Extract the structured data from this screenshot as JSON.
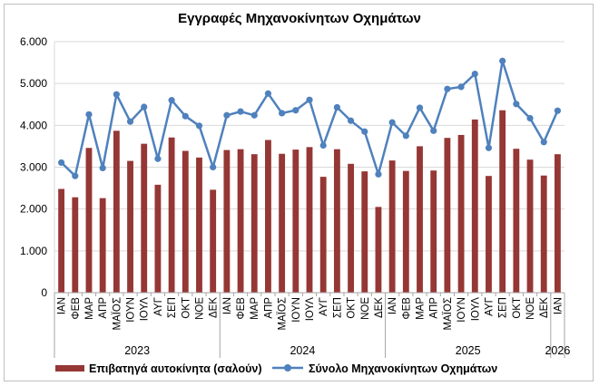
{
  "chart_data": {
    "type": "bar+line",
    "title": "Εγγραφές Μηχανοκίνητων Οχημάτων",
    "ylim": [
      0,
      6000
    ],
    "yticks": [
      "0",
      "1.000",
      "2.000",
      "3.000",
      "4.000",
      "5.000",
      "6.000"
    ],
    "ytick_values": [
      0,
      1000,
      2000,
      3000,
      4000,
      5000,
      6000
    ],
    "grid": true,
    "legend_position": "bottom",
    "categories": [
      "ΙΑΝ",
      "ΦΕΒ",
      "ΜΑΡ",
      "ΑΠΡ",
      "ΜΑΪΟΣ",
      "ΙΟΥΝ",
      "ΙΟΥΛ",
      "ΑΥΓ",
      "ΣΕΠ",
      "ΟΚΤ",
      "ΝΟΕ",
      "ΔΕΚ",
      "ΙΑΝ",
      "ΦΕΒ",
      "ΜΑΡ",
      "ΑΠΡ",
      "ΜΑΪΟΣ",
      "ΙΟΥΝ",
      "ΙΟΥΛ",
      "ΑΥΓ",
      "ΣΕΠ",
      "ΟΚΤ",
      "ΝΟΕ",
      "ΔΕΚ",
      "ΙΑΝ",
      "ΦΕΒ",
      "ΜΑΡ",
      "ΑΠΡ",
      "ΜΑΪΟΣ",
      "ΙΟΥΝ",
      "ΙΟΥΛ",
      "ΑΥΓ",
      "ΣΕΠ",
      "ΟΚΤ",
      "ΝΟΕ",
      "ΔΕΚ",
      "ΙΑΝ"
    ],
    "year_groups": [
      {
        "label": "2023",
        "count": 12
      },
      {
        "label": "2024",
        "count": 12
      },
      {
        "label": "2025",
        "count": 12
      },
      {
        "label": "2026",
        "count": 1
      }
    ],
    "series": [
      {
        "name": "Επιβατηγά αυτοκίνητα (σαλούν)",
        "type": "bar",
        "color": "#953735",
        "values": [
          2480,
          2280,
          3460,
          2260,
          3870,
          3150,
          3560,
          2580,
          3710,
          3390,
          3230,
          2460,
          3410,
          3430,
          3310,
          3650,
          3320,
          3420,
          3480,
          2770,
          3430,
          3080,
          2900,
          2050,
          3160,
          2910,
          3500,
          2920,
          3700,
          3770,
          4140,
          2790,
          4360,
          3440,
          3180,
          2800,
          3310
        ]
      },
      {
        "name": "Σύνολο Μηχανοκίνητων Οχημάτων",
        "type": "line",
        "color": "#4f81bd",
        "values": [
          3110,
          2790,
          4260,
          2980,
          4740,
          4090,
          4440,
          3200,
          4600,
          4220,
          3990,
          3000,
          4240,
          4330,
          4240,
          4760,
          4290,
          4360,
          4610,
          3520,
          4430,
          4110,
          3850,
          2830,
          4070,
          3750,
          4420,
          3870,
          4870,
          4920,
          5230,
          3460,
          5540,
          4510,
          4170,
          3600,
          4350
        ]
      }
    ]
  }
}
